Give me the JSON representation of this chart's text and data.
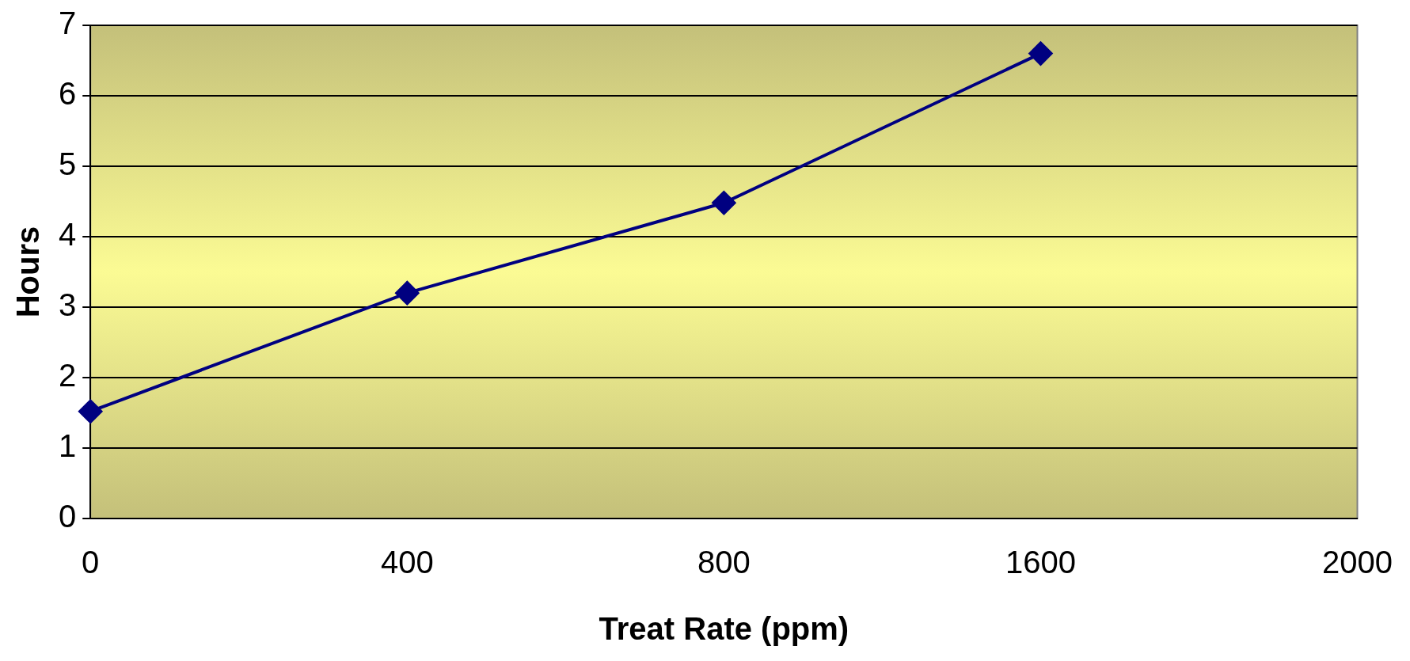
{
  "chart_data": {
    "type": "line",
    "xlabel": "Treat Rate (ppm)",
    "ylabel": "Hours",
    "categories": [
      "0",
      "400",
      "800",
      "1600",
      "2000"
    ],
    "series": [
      {
        "color": "#000080",
        "values": [
          1.52,
          3.2,
          4.48,
          6.6,
          null
        ]
      }
    ],
    "ylim": [
      0,
      7
    ],
    "yticks": [
      0,
      1,
      2,
      3,
      4,
      5,
      6,
      7
    ],
    "grid": "y",
    "legend": false,
    "marker": "diamond",
    "line_style": "solid"
  }
}
